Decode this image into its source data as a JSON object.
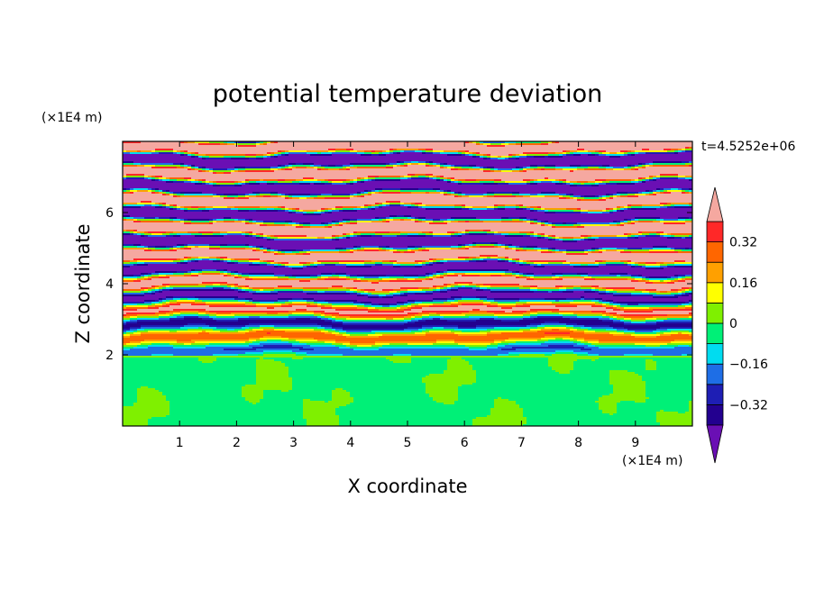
{
  "chart_data": {
    "type": "heatmap",
    "title": "potential temperature deviation",
    "xlabel": "X coordinate",
    "ylabel": "Z coordinate",
    "x_unit": "(×1E4 m)",
    "y_unit": "(×1E4 m)",
    "time_label": "t=4.5252e+06",
    "xlim": [
      0,
      10
    ],
    "ylim": [
      0,
      8
    ],
    "x_ticks": [
      1,
      2,
      3,
      4,
      5,
      6,
      7,
      8,
      9
    ],
    "y_ticks": [
      2,
      4,
      6
    ],
    "mixed_layer_top": 2,
    "colorbar": {
      "levels": [
        -0.4,
        -0.32,
        -0.24,
        -0.16,
        -0.08,
        0,
        0.08,
        0.16,
        0.24,
        0.32,
        0.4
      ],
      "labels": [
        "0.32",
        "0.16",
        "0",
        "−0.16",
        "−0.32"
      ],
      "label_values": [
        0.32,
        0.16,
        0,
        -0.16,
        -0.32
      ],
      "colors": [
        "#6a0fb4",
        "#23008f",
        "#1e1eb4",
        "#1e6ee6",
        "#00dcf0",
        "#00f077",
        "#7ff000",
        "#ffff00",
        "#ffa000",
        "#ff6600",
        "#ff2828",
        "#f5a8a0"
      ]
    }
  }
}
